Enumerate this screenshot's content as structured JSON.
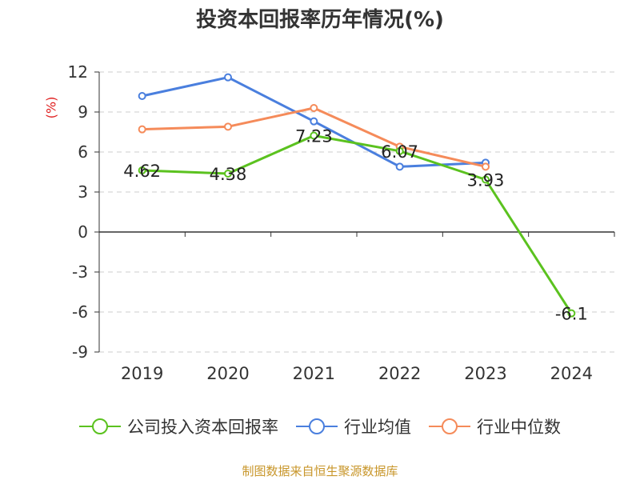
{
  "chart_data": {
    "type": "line",
    "title": "投资本回报率历年情况(%)",
    "y_unit": "(%)",
    "categories": [
      "2019",
      "2020",
      "2021",
      "2022",
      "2023",
      "2024"
    ],
    "ylim": [
      -9,
      12
    ],
    "yticks": [
      12,
      9,
      6,
      3,
      0,
      -3,
      -6,
      -9
    ],
    "grid": true,
    "legend_position": "bottom",
    "series": [
      {
        "name": "公司投入资本回报率",
        "color": "#5bc21f",
        "values": [
          4.62,
          4.38,
          7.23,
          6.07,
          3.93,
          -6.1
        ],
        "labels": [
          "4.62",
          "4.38",
          "7.23",
          "6.07",
          "3.93",
          "-6.1"
        ]
      },
      {
        "name": "行业均值",
        "color": "#4a7fde",
        "values": [
          10.2,
          11.6,
          8.3,
          4.9,
          5.2,
          null
        ]
      },
      {
        "name": "行业中位数",
        "color": "#f58b5a",
        "values": [
          7.7,
          7.9,
          9.3,
          6.4,
          4.9,
          null
        ]
      }
    ]
  },
  "source": "制图数据来自恒生聚源数据库"
}
